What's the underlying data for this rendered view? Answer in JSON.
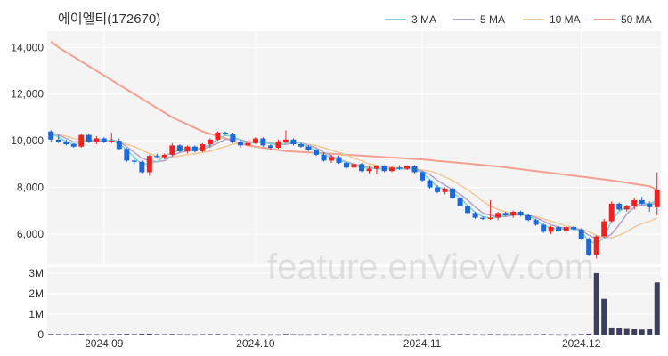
{
  "title": "에이엘티(172670)",
  "watermark": "feature.enVievV.com",
  "legend": [
    {
      "label": "3 MA",
      "color": "#7fd3d3"
    },
    {
      "label": "5 MA",
      "color": "#b3a3c8"
    },
    {
      "label": "10 MA",
      "color": "#f0c99a"
    },
    {
      "label": "50 MA",
      "color": "#f4a090"
    }
  ],
  "colors": {
    "up": "#ee2222",
    "down": "#1f66d6",
    "volume": "#3b3f5c",
    "panel_bg": "#f4f4f4"
  },
  "chart_data": {
    "type": "candlestick",
    "title": "에이엘티(172670)",
    "price_axis": {
      "ticks": [
        6000,
        8000,
        10000,
        12000,
        14000
      ],
      "tick_labels": [
        "6,000",
        "8,000",
        "10,000",
        "12,000",
        "14,000"
      ],
      "range": [
        4700,
        14700
      ]
    },
    "volume_axis": {
      "ticks": [
        0,
        1000000,
        2000000,
        3000000
      ],
      "tick_labels": [
        "0",
        "1M",
        "2M",
        "3M"
      ],
      "range": [
        0,
        3300000
      ]
    },
    "x_ticks": [
      {
        "index": 7,
        "label": "2024.09"
      },
      {
        "index": 27,
        "label": "2024.10"
      },
      {
        "index": 49,
        "label": "2024.11"
      },
      {
        "index": 70,
        "label": "2024.12"
      }
    ],
    "grid": true,
    "legend_position": "top-right",
    "candles": [
      [
        10400,
        10450,
        9950,
        10050
      ],
      [
        10050,
        10250,
        9900,
        9950
      ],
      [
        9950,
        10050,
        9800,
        9850
      ],
      [
        9850,
        9900,
        9700,
        9750
      ],
      [
        9750,
        10300,
        9700,
        10250
      ],
      [
        10250,
        10300,
        9900,
        9950
      ],
      [
        9950,
        10200,
        9850,
        10100
      ],
      [
        10100,
        10150,
        9900,
        9950
      ],
      [
        9950,
        10350,
        9900,
        10000
      ],
      [
        10000,
        10100,
        9600,
        9650
      ],
      [
        9650,
        9700,
        9100,
        9150
      ],
      [
        9150,
        9250,
        9000,
        9100
      ],
      [
        9100,
        9150,
        8600,
        8650
      ],
      [
        8650,
        9400,
        8500,
        9350
      ],
      [
        9350,
        9450,
        9250,
        9300
      ],
      [
        9300,
        9450,
        9200,
        9400
      ],
      [
        9400,
        9900,
        9350,
        9800
      ],
      [
        9800,
        9850,
        9500,
        9550
      ],
      [
        9550,
        9800,
        9450,
        9750
      ],
      [
        9750,
        9800,
        9500,
        9550
      ],
      [
        9550,
        9900,
        9500,
        9850
      ],
      [
        9850,
        10100,
        9700,
        10050
      ],
      [
        10050,
        10400,
        10000,
        10350
      ],
      [
        10350,
        10400,
        10250,
        10300
      ],
      [
        10300,
        10350,
        9900,
        9950
      ],
      [
        9950,
        10050,
        9700,
        9800
      ],
      [
        9800,
        10050,
        9750,
        9900
      ],
      [
        9900,
        10150,
        9850,
        10100
      ],
      [
        10100,
        10150,
        9750,
        9800
      ],
      [
        9800,
        9850,
        9600,
        9700
      ],
      [
        9700,
        10050,
        9650,
        9950
      ],
      [
        9950,
        10450,
        9900,
        10050
      ],
      [
        10050,
        10100,
        9800,
        9850
      ],
      [
        9850,
        9900,
        9700,
        9750
      ],
      [
        9750,
        9800,
        9550,
        9600
      ],
      [
        9600,
        9650,
        9350,
        9400
      ],
      [
        9400,
        9500,
        9100,
        9150
      ],
      [
        9150,
        9400,
        9050,
        9300
      ],
      [
        9300,
        9350,
        9000,
        9050
      ],
      [
        9050,
        9100,
        8800,
        8850
      ],
      [
        8850,
        9100,
        8800,
        9000
      ],
      [
        9000,
        9050,
        8650,
        8700
      ],
      [
        8700,
        8900,
        8600,
        8800
      ],
      [
        8800,
        8950,
        8550,
        8900
      ],
      [
        8900,
        8950,
        8650,
        8700
      ],
      [
        8700,
        8900,
        8650,
        8850
      ],
      [
        8850,
        8950,
        8750,
        8800
      ],
      [
        8800,
        8950,
        8750,
        8900
      ],
      [
        8900,
        8950,
        8600,
        8650
      ],
      [
        8650,
        8700,
        8250,
        8300
      ],
      [
        8300,
        8350,
        7950,
        8000
      ],
      [
        8000,
        8100,
        7750,
        7800
      ],
      [
        7800,
        8000,
        7700,
        7950
      ],
      [
        7950,
        8000,
        7500,
        7550
      ],
      [
        7550,
        7600,
        7150,
        7200
      ],
      [
        7200,
        7250,
        6850,
        6900
      ],
      [
        6900,
        6950,
        6650,
        6700
      ],
      [
        6700,
        6750,
        6600,
        6650
      ],
      [
        6650,
        7450,
        6600,
        6700
      ],
      [
        6700,
        6950,
        6600,
        6900
      ],
      [
        6900,
        6950,
        6750,
        6800
      ],
      [
        6800,
        7000,
        6700,
        6950
      ],
      [
        6950,
        7000,
        6750,
        6800
      ],
      [
        6800,
        6850,
        6550,
        6600
      ],
      [
        6600,
        6650,
        6350,
        6400
      ],
      [
        6400,
        6450,
        6050,
        6100
      ],
      [
        6100,
        6350,
        6000,
        6300
      ],
      [
        6300,
        6350,
        6100,
        6150
      ],
      [
        6150,
        6350,
        6050,
        6300
      ],
      [
        6300,
        6350,
        6150,
        6200
      ],
      [
        6200,
        6250,
        5750,
        5800
      ],
      [
        5800,
        5850,
        5050,
        5100
      ],
      [
        5100,
        5950,
        4950,
        5900
      ],
      [
        5900,
        6650,
        5850,
        6550
      ],
      [
        6550,
        7400,
        6500,
        7300
      ],
      [
        7300,
        7350,
        7000,
        7050
      ],
      [
        7050,
        7250,
        6950,
        7200
      ],
      [
        7200,
        7550,
        7050,
        7450
      ],
      [
        7450,
        7600,
        7250,
        7300
      ],
      [
        7300,
        7400,
        6950,
        7150
      ],
      [
        7150,
        8650,
        6800,
        7900
      ]
    ],
    "ma": {
      "3": [
        10300,
        10150,
        9950,
        9850,
        9950,
        9970,
        10100,
        10000,
        10020,
        9870,
        9600,
        9300,
        8970,
        9030,
        9100,
        9350,
        9500,
        9580,
        9700,
        9620,
        9720,
        9820,
        10080,
        10230,
        10200,
        10020,
        9880,
        9930,
        9930,
        9870,
        9820,
        9900,
        9950,
        9880,
        9730,
        9580,
        9380,
        9280,
        9170,
        9070,
        8970,
        8850,
        8830,
        8800,
        8820,
        8780,
        8800,
        8830,
        8780,
        8620,
        8320,
        8030,
        7920,
        7770,
        7550,
        7220,
        6930,
        6750,
        6680,
        6750,
        6800,
        6880,
        6850,
        6780,
        6600,
        6370,
        6270,
        6180,
        6250,
        6220,
        6100,
        5700,
        5600,
        5830,
        6580,
        6970,
        7180,
        7230,
        7320,
        7300,
        7450
      ],
      "5": [
        10350,
        10250,
        10100,
        9950,
        9950,
        10000,
        10000,
        9950,
        10050,
        9950,
        9750,
        9500,
        9250,
        9150,
        9100,
        9150,
        9350,
        9500,
        9550,
        9600,
        9650,
        9750,
        9900,
        10050,
        10100,
        10050,
        9950,
        9950,
        9950,
        9900,
        9850,
        9850,
        9900,
        9900,
        9800,
        9700,
        9500,
        9350,
        9200,
        9100,
        9000,
        8900,
        8850,
        8800,
        8800,
        8800,
        8800,
        8800,
        8800,
        8700,
        8550,
        8300,
        8100,
        7900,
        7700,
        7450,
        7150,
        6900,
        6800,
        6750,
        6750,
        6800,
        6850,
        6800,
        6700,
        6550,
        6400,
        6300,
        6250,
        6250,
        6150,
        5950,
        5800,
        5800,
        6000,
        6400,
        6850,
        7150,
        7250,
        7250,
        7350
      ],
      "10": [
        10300,
        10250,
        10200,
        10100,
        10050,
        10000,
        10000,
        10000,
        10000,
        9950,
        9850,
        9750,
        9600,
        9450,
        9350,
        9300,
        9300,
        9350,
        9400,
        9450,
        9500,
        9550,
        9650,
        9750,
        9850,
        9900,
        9950,
        9950,
        9950,
        9950,
        9950,
        9900,
        9900,
        9900,
        9850,
        9800,
        9700,
        9600,
        9500,
        9400,
        9250,
        9150,
        9000,
        8950,
        8900,
        8850,
        8850,
        8800,
        8800,
        8750,
        8700,
        8600,
        8450,
        8300,
        8100,
        7900,
        7650,
        7400,
        7200,
        7050,
        6950,
        6850,
        6800,
        6800,
        6750,
        6650,
        6550,
        6450,
        6350,
        6300,
        6200,
        6100,
        5950,
        5850,
        5850,
        5950,
        6100,
        6300,
        6450,
        6550,
        6700
      ],
      "50": [
        14250,
        14000,
        13800,
        13600,
        13400,
        13200,
        13000,
        12800,
        12600,
        12400,
        12200,
        12000,
        11800,
        11600,
        11400,
        11200,
        11000,
        10850,
        10700,
        10550,
        10400,
        10300,
        10200,
        10100,
        10000,
        9900,
        9800,
        9750,
        9700,
        9650,
        9600,
        9560,
        9540,
        9520,
        9500,
        9480,
        9460,
        9440,
        9420,
        9400,
        9380,
        9360,
        9340,
        9320,
        9300,
        9280,
        9260,
        9240,
        9220,
        9200,
        9170,
        9140,
        9110,
        9080,
        9050,
        9020,
        8990,
        8960,
        8930,
        8900,
        8860,
        8820,
        8780,
        8740,
        8700,
        8660,
        8620,
        8580,
        8540,
        8500,
        8460,
        8420,
        8380,
        8340,
        8300,
        8250,
        8200,
        8150,
        8100,
        8050,
        7900
      ]
    },
    "volume": [
      30000,
      25000,
      20000,
      20000,
      35000,
      20000,
      20000,
      18000,
      25000,
      30000,
      35000,
      25000,
      40000,
      45000,
      25000,
      20000,
      30000,
      20000,
      18000,
      15000,
      20000,
      25000,
      30000,
      20000,
      18000,
      15000,
      15000,
      20000,
      18000,
      15000,
      15000,
      30000,
      20000,
      15000,
      15000,
      18000,
      20000,
      15000,
      15000,
      18000,
      15000,
      18000,
      15000,
      15000,
      15000,
      15000,
      15000,
      12000,
      15000,
      20000,
      25000,
      20000,
      15000,
      20000,
      25000,
      20000,
      18000,
      15000,
      25000,
      18000,
      15000,
      15000,
      15000,
      18000,
      20000,
      25000,
      18000,
      15000,
      15000,
      15000,
      25000,
      40000,
      3000000,
      1750000,
      350000,
      320000,
      280000,
      260000,
      250000,
      260000,
      2550000
    ]
  }
}
